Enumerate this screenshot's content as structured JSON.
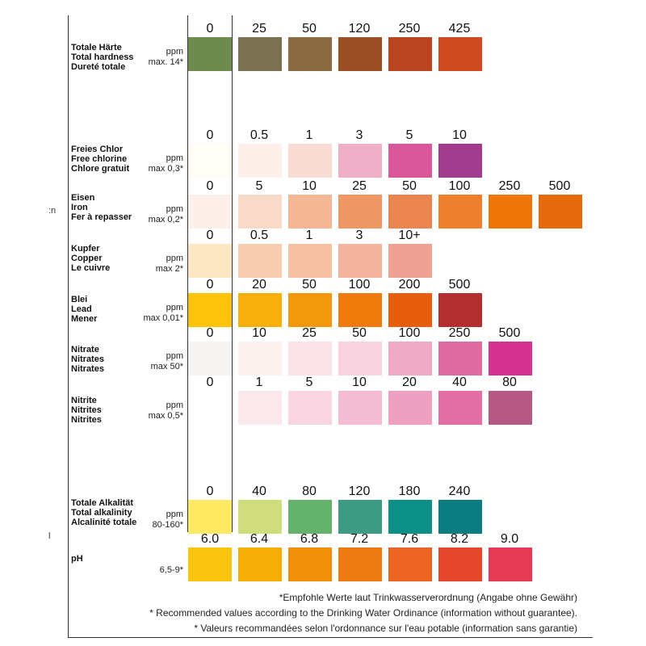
{
  "rows": [
    {
      "labels": [
        "Totale Härte",
        "Total hardness",
        "Dureté totale"
      ],
      "unit": "ppm",
      "max": "max. 14*",
      "values": [
        "0",
        "25",
        "50",
        "120",
        "250",
        "425"
      ],
      "colors": [
        "#6f8a4d",
        "#7b7252",
        "#8a6b44",
        "#9c4f25",
        "#b8451f",
        "#cf4b22"
      ]
    },
    {
      "labels": [
        "Freies Chlor",
        "Free chlorine",
        "Chlore gratuit"
      ],
      "unit": "ppm",
      "max": "max 0,3*",
      "values": [
        "0",
        "0.5",
        "1",
        "3",
        "5",
        "10"
      ],
      "colors": [
        "#fffdf5",
        "#fdf0ea",
        "#f9dcd3",
        "#efb0c7",
        "#d8589a",
        "#a13c8c"
      ]
    },
    {
      "labels": [
        "Eisen",
        "Iron",
        "Fer à repasser"
      ],
      "unit": "ppm",
      "max": "max 0,2*",
      "values": [
        "0",
        "5",
        "10",
        "25",
        "50",
        "100",
        "250",
        "500"
      ],
      "colors": [
        "#fdf0ea",
        "#f9d9c7",
        "#f3b795",
        "#ee9866",
        "#ec8651",
        "#ee7f2f",
        "#ee7607",
        "#e56a0c"
      ]
    },
    {
      "labels": [
        "Kupfer",
        "Copper",
        "Le cuivre"
      ],
      "unit": "ppm",
      "max": "max 2*",
      "values": [
        "0",
        "0.5",
        "1",
        "3",
        "10+"
      ],
      "colors": [
        "#fde6c4",
        "#f8ceb2",
        "#f5c0a2",
        "#f3b39e",
        "#efa294"
      ]
    },
    {
      "labels": [
        "Blei",
        "Lead",
        "Mener"
      ],
      "unit": "ppm",
      "max": "max 0,01*",
      "values": [
        "0",
        "20",
        "50",
        "100",
        "200",
        "500"
      ],
      "colors": [
        "#fbc30a",
        "#f8b00c",
        "#f39a0c",
        "#ef7a0c",
        "#e75d0c",
        "#b22e31"
      ]
    },
    {
      "labels": [
        "Nitrate",
        "Nitrates",
        "Nitrates"
      ],
      "unit": "ppm",
      "max": "max 50*",
      "values": [
        "0",
        "10",
        "25",
        "50",
        "100",
        "250",
        "500"
      ],
      "colors": [
        "#f6f5f4",
        "#fdf2ef",
        "#fbe4e8",
        "#f8d2de",
        "#efabc6",
        "#de6aa0",
        "#d63292"
      ]
    },
    {
      "labels": [
        "Nitrite",
        "Nitrites",
        "Nitrites"
      ],
      "unit": "ppm",
      "max": "max 0,5*",
      "values": [
        "0",
        "1",
        "5",
        "10",
        "20",
        "40",
        "80"
      ],
      "colors": [
        "#ffffff",
        "#fbe8ec",
        "#f8d5e1",
        "#f4bcd2",
        "#eda0c0",
        "#e36ea4",
        "#b55883"
      ]
    },
    {
      "labels": [
        "Totale Alkalität",
        "Total alkalinity",
        "Alcalinité totale"
      ],
      "unit": "ppm",
      "max": "80-160*",
      "values": [
        "0",
        "40",
        "80",
        "120",
        "180",
        "240"
      ],
      "colors": [
        "#fde962",
        "#cfdd7d",
        "#64b26c",
        "#3e9c82",
        "#0b8f86",
        "#0a7c82"
      ]
    },
    {
      "labels": [
        "pH"
      ],
      "unit": "",
      "max": "6,5-9*",
      "values": [
        "6.0",
        "6.4",
        "6.8",
        "7.2",
        "7.6",
        "8.2",
        "9.0"
      ],
      "colors": [
        "#f8c40d",
        "#f6ad08",
        "#f2900c",
        "#ee7a12",
        "#ec6422",
        "#e6462b",
        "#e63a57"
      ]
    }
  ],
  "footnotes": [
    "*Empfohle Werte laut Trinkwasserverordnung (Angabe ohne Gewähr)",
    "* Recommended values according to the Drinking Water Ordinance (information without guarantee).",
    "* Valeurs recommandées selon l'ordonnance sur l'eau potable (information sans garantie)"
  ],
  "stray_marks": [
    ":n",
    "l"
  ]
}
